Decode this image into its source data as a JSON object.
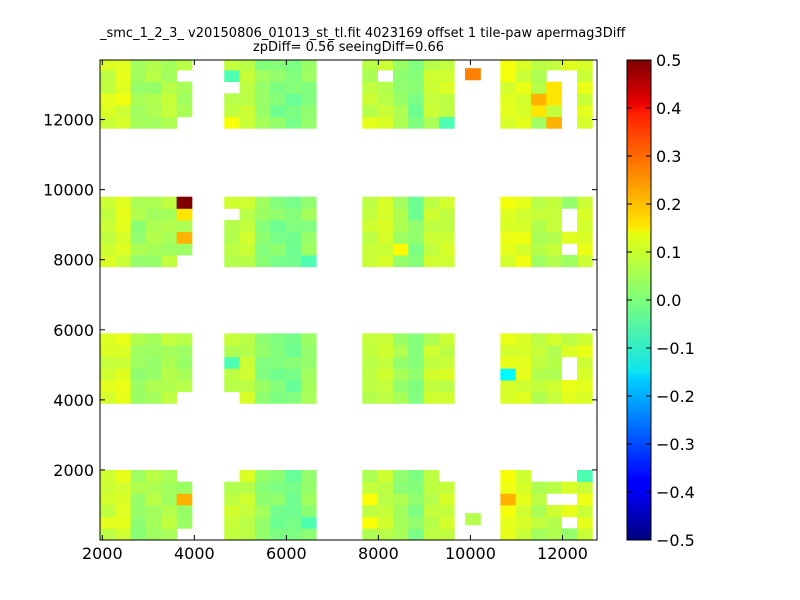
{
  "chart_data": {
    "type": "heatmap",
    "title": "_smc_1_2_3_ v20150806_01013_st_tl.fit 4023169 offset 1 tile-paw apermag3Diff",
    "subtitle": "zpDiff= 0.56 seeingDiff=0.66",
    "xlabel": "",
    "ylabel": "",
    "xlim": [
      1950,
      12750
    ],
    "ylim": [
      0,
      13700
    ],
    "xticks": [
      "2000",
      "4000",
      "6000",
      "8000",
      "10000",
      "12000"
    ],
    "yticks": [
      "2000",
      "4000",
      "6000",
      "8000",
      "10000",
      "12000"
    ],
    "colorbar": {
      "colormap": "jet",
      "vmin": -0.5,
      "vmax": 0.5,
      "ticks": [
        "0.5",
        "0.4",
        "0.3",
        "0.2",
        "0.1",
        "0.0",
        "−0.1",
        "−0.2",
        "−0.3",
        "−0.4",
        "−0.5"
      ]
    },
    "grid": false,
    "bin_size": [
      333,
      333
    ],
    "column_blocks": [
      {
        "x0": 1950,
        "cols": 6
      },
      {
        "x0": 4650,
        "cols": 6
      },
      {
        "x0": 7650,
        "cols": 6
      },
      {
        "x0": 10650,
        "cols": 6
      }
    ],
    "row_blocks": [
      {
        "y0": 0,
        "rows": 6
      },
      {
        "y0": 3900,
        "rows": 6
      },
      {
        "y0": 7800,
        "rows": 6
      },
      {
        "y0": 11750,
        "rows": 6
      }
    ],
    "base_values": [
      [
        0.08,
        0.09,
        0.03,
        0.04,
        0.05,
        0.04
      ],
      [
        0.06,
        0.07,
        0.02,
        0.0,
        -0.01,
        0.02
      ],
      [
        0.06,
        0.07,
        0.03,
        0.0,
        0.06,
        0.07
      ],
      [
        0.1,
        0.09,
        0.05,
        0.06,
        0.1,
        0.09
      ]
    ],
    "overrides": [
      {
        "x": 4100,
        "y": 9700,
        "v": 0.5
      },
      {
        "x": 4100,
        "y": 9300,
        "v": 0.15
      },
      {
        "x": 4100,
        "y": 8500,
        "v": 0.2
      },
      {
        "x": 4100,
        "y": 1000,
        "v": 0.2
      },
      {
        "x": 4100,
        "y": 3600,
        "v": -1
      },
      {
        "x": 4100,
        "y": 4000,
        "v": -1
      },
      {
        "x": 4100,
        "y": 6100,
        "v": -1
      },
      {
        "x": 4100,
        "y": 7800,
        "v": -1
      },
      {
        "x": 4100,
        "y": 200,
        "v": -1
      },
      {
        "x": 4100,
        "y": 1900,
        "v": -1
      },
      {
        "x": 4100,
        "y": 12000,
        "v": -1
      },
      {
        "x": 4100,
        "y": 13300,
        "v": -1
      },
      {
        "x": 4800,
        "y": 13300,
        "v": -0.05
      },
      {
        "x": 4800,
        "y": 5200,
        "v": -0.05
      },
      {
        "x": 4800,
        "y": 12000,
        "v": 0.12
      },
      {
        "x": 4800,
        "y": 9300,
        "v": -1
      },
      {
        "x": 4800,
        "y": 4000,
        "v": -1
      },
      {
        "x": 4800,
        "y": 2000,
        "v": -1
      },
      {
        "x": 4800,
        "y": 12800,
        "v": -1
      },
      {
        "x": 4800,
        "y": 11900,
        "v": 0.12
      },
      {
        "x": 5800,
        "y": 13300,
        "v": 0.02
      },
      {
        "x": 6400,
        "y": 8000,
        "v": -0.05
      },
      {
        "x": 6400,
        "y": 600,
        "v": -0.05
      },
      {
        "x": 8000,
        "y": 13300,
        "v": -1
      },
      {
        "x": 8400,
        "y": 8400,
        "v": 0.13
      },
      {
        "x": 7800,
        "y": 400,
        "v": 0.12
      },
      {
        "x": 7800,
        "y": 1300,
        "v": 0.12
      },
      {
        "x": 7800,
        "y": 12000,
        "v": 0.1
      },
      {
        "x": 9350,
        "y": 12000,
        "v": -0.05
      },
      {
        "x": 9350,
        "y": 2000,
        "v": -0.04
      },
      {
        "x": 9700,
        "y": 2000,
        "v": -1
      },
      {
        "x": 10000,
        "y": 2000,
        "v": -1
      },
      {
        "x": 10050,
        "y": 13300,
        "v": 0.25
      },
      {
        "x": 10050,
        "y": 600,
        "v": 0.2
      },
      {
        "x": 10050,
        "y": 200,
        "v": 0.05
      },
      {
        "x": 10050,
        "y": 4700,
        "v": -1
      },
      {
        "x": 10050,
        "y": 4300,
        "v": -1
      },
      {
        "x": 10050,
        "y": 3900,
        "v": -1
      },
      {
        "x": 10050,
        "y": 9800,
        "v": -1
      },
      {
        "x": 10050,
        "y": 12000,
        "v": -1
      },
      {
        "x": 10500,
        "y": 4850,
        "v": -0.13
      },
      {
        "x": 10500,
        "y": 1000,
        "v": 0.2
      },
      {
        "x": 10500,
        "y": 600,
        "v": 0.1
      },
      {
        "x": 11500,
        "y": 12600,
        "v": 0.2
      },
      {
        "x": 11500,
        "y": 12300,
        "v": 0.15
      },
      {
        "x": 11800,
        "y": 11900,
        "v": 0.2
      },
      {
        "x": 11800,
        "y": 12600,
        "v": 0.15
      },
      {
        "x": 11800,
        "y": 12900,
        "v": 0.15
      },
      {
        "x": 11800,
        "y": 13300,
        "v": -1
      },
      {
        "x": 12150,
        "y": 13300,
        "v": -1
      },
      {
        "x": 12150,
        "y": 12900,
        "v": -1
      },
      {
        "x": 12150,
        "y": 12600,
        "v": -1
      },
      {
        "x": 12150,
        "y": 12300,
        "v": -1
      },
      {
        "x": 12150,
        "y": 11900,
        "v": -1
      },
      {
        "x": 12150,
        "y": 8000,
        "v": 0.03
      },
      {
        "x": 12150,
        "y": 8400,
        "v": -1
      },
      {
        "x": 12150,
        "y": 8800,
        "v": -1
      },
      {
        "x": 12150,
        "y": 9200,
        "v": -1
      },
      {
        "x": 12150,
        "y": 9700,
        "v": 0.02
      },
      {
        "x": 12150,
        "y": 6000,
        "v": -1
      },
      {
        "x": 12150,
        "y": 5600,
        "v": -1
      },
      {
        "x": 12150,
        "y": 5200,
        "v": -1
      },
      {
        "x": 12150,
        "y": 4700,
        "v": -1
      },
      {
        "x": 12150,
        "y": 6000,
        "v": -1
      },
      {
        "x": 12150,
        "y": 200,
        "v": 0.02
      },
      {
        "x": 12150,
        "y": 600,
        "v": -1
      },
      {
        "x": 12150,
        "y": 1000,
        "v": -1
      },
      {
        "x": 12150,
        "y": 1300,
        "v": -1
      },
      {
        "x": 12150,
        "y": 1700,
        "v": -1
      },
      {
        "x": 12150,
        "y": 2000,
        "v": -1
      },
      {
        "x": 11800,
        "y": 1300,
        "v": -1
      },
      {
        "x": 11800,
        "y": 1700,
        "v": -1
      },
      {
        "x": 11800,
        "y": 2000,
        "v": -1
      },
      {
        "x": 11500,
        "y": 2000,
        "v": -1
      },
      {
        "x": 11800,
        "y": 6000,
        "v": -1
      },
      {
        "x": 11800,
        "y": 5600,
        "v": 0.08
      },
      {
        "x": 12300,
        "y": 6000,
        "v": 0.06
      },
      {
        "x": 12650,
        "y": 1900,
        "v": -0.05
      }
    ]
  }
}
